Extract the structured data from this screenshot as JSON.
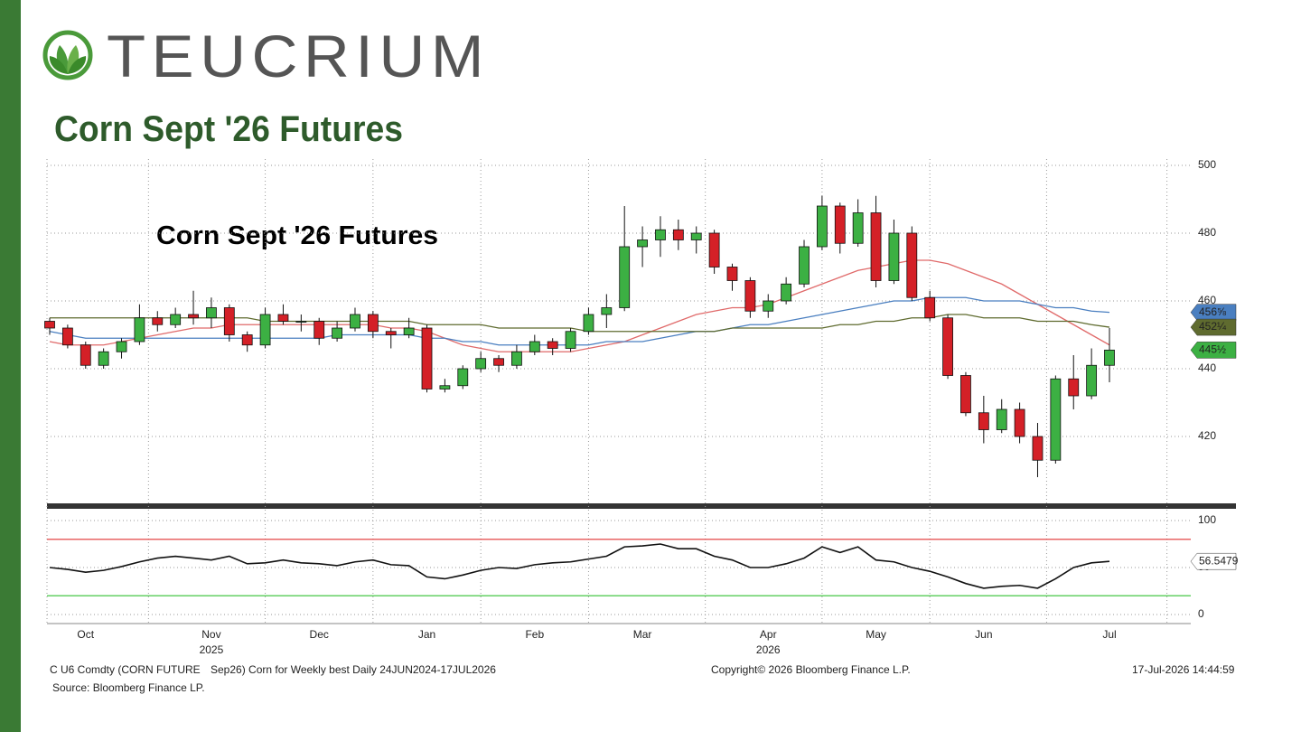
{
  "header": {
    "logo_text": "TEUCRIUM",
    "title": "Corn Sept '26 Futures"
  },
  "chart_data": [
    {
      "type": "candlestick",
      "title": "Corn Sept '26 Futures",
      "open": [
        454,
        452,
        447,
        441,
        445,
        448,
        455,
        453,
        456,
        455,
        458,
        450,
        447,
        456,
        454,
        454,
        449,
        452,
        456,
        451,
        450,
        452,
        434,
        435,
        440,
        443,
        441,
        445,
        448,
        446,
        451,
        456,
        458,
        476,
        478,
        481,
        478,
        480,
        470,
        466,
        457,
        460,
        465,
        476,
        488,
        477,
        486,
        466,
        480,
        461,
        455,
        438,
        427,
        422,
        428,
        420,
        413,
        437,
        432,
        441
      ],
      "high": [
        455,
        453,
        448,
        446,
        449,
        459,
        457,
        458,
        463,
        461,
        459,
        451,
        458,
        459,
        456,
        455,
        454,
        458,
        457,
        452,
        455,
        453,
        437,
        441,
        445,
        444,
        447,
        450,
        449,
        452,
        458,
        462,
        488,
        482,
        485,
        484,
        482,
        481,
        471,
        467,
        462,
        467,
        478,
        491,
        489,
        490,
        491,
        484,
        482,
        463,
        456,
        439,
        432,
        431,
        430,
        424,
        438,
        444,
        446,
        452
      ],
      "low": [
        450,
        446,
        440,
        440,
        443,
        447,
        451,
        452,
        453,
        452,
        448,
        445,
        446,
        453,
        451,
        447,
        448,
        451,
        449,
        446,
        449,
        433,
        433,
        434,
        439,
        439,
        440,
        444,
        444,
        445,
        450,
        452,
        457,
        470,
        473,
        475,
        474,
        468,
        463,
        455,
        455,
        459,
        464,
        475,
        474,
        476,
        464,
        465,
        460,
        454,
        437,
        426,
        418,
        421,
        418,
        408,
        412,
        428,
        431,
        436
      ],
      "close": [
        452,
        447,
        441,
        445,
        448,
        455,
        453,
        456,
        455,
        458,
        450,
        447,
        456,
        454,
        454,
        449,
        452,
        456,
        451,
        450,
        452,
        434,
        435,
        440,
        443,
        441,
        445,
        448,
        446,
        451,
        456,
        458,
        476,
        478,
        481,
        478,
        480,
        470,
        466,
        457,
        460,
        465,
        476,
        488,
        477,
        486,
        466,
        480,
        461,
        455,
        438,
        427,
        422,
        428,
        420,
        413,
        437,
        432,
        441,
        445.5
      ],
      "close_labels": [
        null,
        null,
        null,
        null,
        null,
        null,
        null,
        null,
        null,
        null,
        null,
        null,
        null,
        null,
        null,
        null,
        null,
        null,
        null,
        null,
        null,
        null,
        null,
        null,
        null,
        null,
        null,
        null,
        null,
        null,
        null,
        null,
        null,
        null,
        null,
        null,
        null,
        null,
        null,
        null,
        null,
        null,
        null,
        null,
        null,
        null,
        null,
        null,
        null,
        null,
        null,
        null,
        null,
        null,
        null,
        null,
        null,
        null,
        null,
        "445½"
      ],
      "color_up": "#3cb043",
      "color_down": "#d42027",
      "series": [
        {
          "color": "#e06a6a",
          "values": [
            448,
            447,
            447,
            447,
            448,
            449,
            450,
            451,
            452,
            452,
            453,
            453,
            453,
            453,
            453,
            453,
            453,
            453,
            453,
            452,
            452,
            451,
            449,
            447,
            446,
            445,
            445,
            445,
            445,
            445,
            446,
            447,
            448,
            450,
            452,
            454,
            456,
            457,
            458,
            458,
            459,
            461,
            463,
            465,
            467,
            469,
            470,
            471,
            472,
            472,
            471,
            469,
            467,
            465,
            462,
            459,
            456,
            453,
            450,
            447
          ]
        },
        {
          "color": "#4a7fc0",
          "values": [
            451,
            450,
            449,
            449,
            449,
            449,
            449,
            449,
            449,
            449,
            449,
            449,
            449,
            449,
            449,
            449,
            450,
            450,
            450,
            450,
            450,
            449,
            449,
            448,
            448,
            447,
            447,
            447,
            447,
            447,
            447,
            448,
            448,
            448,
            449,
            450,
            451,
            451,
            452,
            453,
            453,
            454,
            455,
            456,
            457,
            458,
            459,
            460,
            460,
            461,
            461,
            461,
            460,
            460,
            460,
            459,
            458,
            458,
            457,
            456.625
          ],
          "value_labels": [
            null,
            null,
            null,
            null,
            null,
            null,
            null,
            null,
            null,
            null,
            null,
            null,
            null,
            null,
            null,
            null,
            null,
            null,
            null,
            null,
            null,
            null,
            null,
            null,
            null,
            null,
            null,
            null,
            null,
            null,
            null,
            null,
            null,
            null,
            null,
            null,
            null,
            null,
            null,
            null,
            null,
            null,
            null,
            null,
            null,
            null,
            null,
            null,
            null,
            null,
            null,
            null,
            null,
            null,
            null,
            null,
            null,
            null,
            null,
            "456⅝"
          ]
        },
        {
          "color": "#5f6b2f",
          "values": [
            455,
            455,
            455,
            455,
            455,
            455,
            455,
            455,
            455,
            455,
            455,
            455,
            454,
            454,
            454,
            454,
            454,
            454,
            454,
            454,
            454,
            453,
            453,
            453,
            453,
            452,
            452,
            452,
            452,
            452,
            451,
            451,
            451,
            451,
            451,
            451,
            451,
            451,
            452,
            452,
            452,
            452,
            452,
            452,
            453,
            453,
            454,
            454,
            455,
            455,
            456,
            456,
            455,
            455,
            455,
            454,
            454,
            454,
            453,
            452.25
          ],
          "value_labels": [
            null,
            null,
            null,
            null,
            null,
            null,
            null,
            null,
            null,
            null,
            null,
            null,
            null,
            null,
            null,
            null,
            null,
            null,
            null,
            null,
            null,
            null,
            null,
            null,
            null,
            null,
            null,
            null,
            null,
            null,
            null,
            null,
            null,
            null,
            null,
            null,
            null,
            null,
            null,
            null,
            null,
            null,
            null,
            null,
            null,
            null,
            null,
            null,
            null,
            null,
            null,
            null,
            null,
            null,
            null,
            null,
            null,
            null,
            null,
            "452¼"
          ]
        }
      ],
      "ylim": [
        400,
        500
      ],
      "yticks": [
        420,
        440,
        460,
        480,
        500
      ],
      "grid": true
    },
    {
      "type": "line",
      "categories": [
        null,
        null,
        "Oct",
        null,
        null,
        null,
        null,
        null,
        null,
        "Nov",
        null,
        null,
        null,
        null,
        null,
        "Dec",
        null,
        null,
        null,
        null,
        null,
        "Jan",
        null,
        null,
        null,
        null,
        null,
        "Feb",
        null,
        null,
        null,
        null,
        null,
        "Mar",
        null,
        null,
        null,
        null,
        null,
        null,
        "Apr",
        null,
        null,
        null,
        null,
        null,
        "May",
        null,
        null,
        null,
        null,
        null,
        "Jun",
        null,
        null,
        null,
        null,
        null,
        null,
        "Jul"
      ],
      "year_labels": [
        null,
        null,
        null,
        null,
        null,
        null,
        null,
        null,
        null,
        "2025",
        null,
        null,
        null,
        null,
        null,
        null,
        null,
        null,
        null,
        null,
        null,
        null,
        null,
        null,
        null,
        null,
        null,
        null,
        null,
        null,
        null,
        null,
        null,
        null,
        null,
        null,
        null,
        null,
        null,
        null,
        "2026",
        null,
        null,
        null,
        null,
        null,
        null,
        null,
        null,
        null,
        null,
        null,
        null,
        null,
        null,
        null,
        null,
        null,
        null,
        null
      ],
      "series": [
        {
          "color": "#111111",
          "values": [
            50,
            48,
            45,
            47,
            51,
            56,
            60,
            62,
            60,
            58,
            62,
            54,
            55,
            58,
            55,
            54,
            52,
            56,
            58,
            53,
            52,
            40,
            38,
            42,
            47,
            50,
            49,
            53,
            55,
            56,
            59,
            62,
            72,
            73,
            75,
            70,
            70,
            62,
            58,
            50,
            50,
            54,
            60,
            72,
            66,
            72,
            58,
            56,
            50,
            46,
            40,
            33,
            28,
            30,
            31,
            28,
            38,
            50,
            55,
            56.5479
          ]
        }
      ],
      "levels": [
        {
          "value": 80,
          "color": "#e03030"
        },
        {
          "value": 20,
          "color": "#30c030"
        }
      ],
      "ylim": [
        0,
        100
      ],
      "yticks": [
        0,
        50,
        100
      ],
      "grid": true
    }
  ],
  "footer": {
    "ticker": "C U6 Comdty (CORN FUTURE",
    "description": "Sep26) Corn for Weekly best Daily 24JUN2024-17JUL2026",
    "copyright": "Copyright© 2026 Bloomberg Finance L.P.",
    "timestamp": "17-Jul-2026 14:44:59",
    "source": "Source: Bloomberg Finance LP."
  }
}
